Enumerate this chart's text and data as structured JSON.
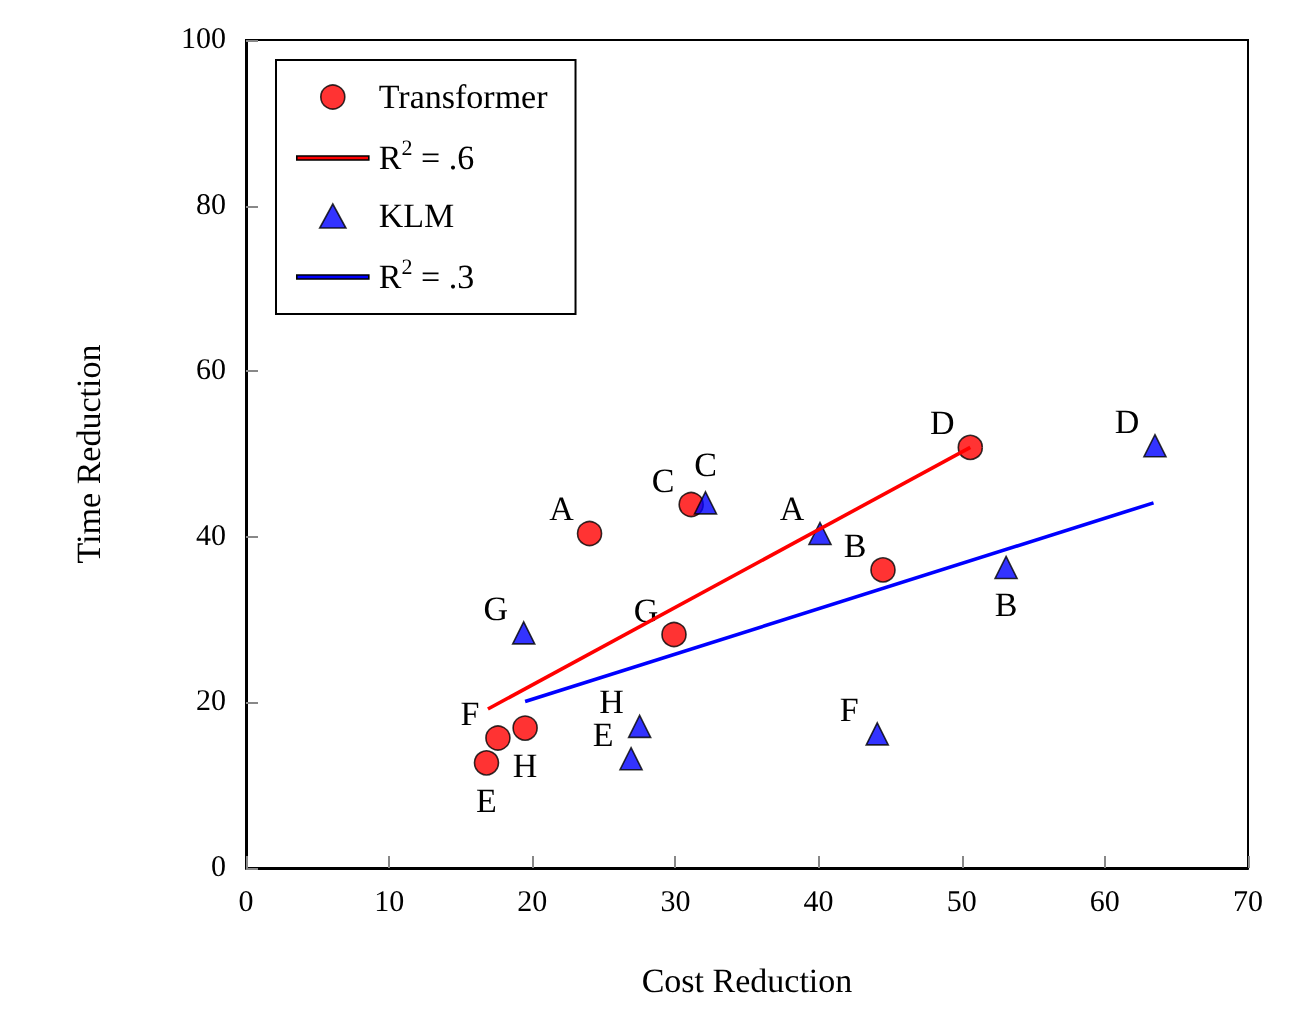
{
  "chart_data": {
    "type": "scatter",
    "xlabel": "Cost Reduction",
    "ylabel": "Time Reduction",
    "xlim": [
      0,
      70
    ],
    "xticks": [
      0,
      10,
      20,
      30,
      40,
      50,
      60,
      70
    ],
    "ylim": [
      0,
      100
    ],
    "yticks": [
      0,
      20,
      40,
      60,
      80,
      100
    ],
    "grid": false,
    "legend": "top left",
    "series": [
      {
        "name": "Transformer",
        "marker": "circle",
        "color": "#ff0000",
        "x": [
          24,
          31.1,
          50.6,
          44.5,
          29.9,
          19.5,
          17.6,
          16.8
        ],
        "values": [
          40.4,
          43.9,
          50.8,
          36.0,
          28.2,
          16.9,
          15.7,
          12.7
        ]
      },
      {
        "name": "R$^{2}$ = .6",
        "type": "line",
        "marker": "none",
        "color": "#ff0000",
        "x": [
          16.9,
          50.6
        ],
        "values": [
          19.2,
          50.8
        ]
      },
      {
        "name": "KLM",
        "marker": "triangle",
        "color": "#0000ff",
        "x": [
          40.1,
          32.1,
          63.5,
          53.1,
          19.4,
          27.5,
          26.9,
          44.1
        ],
        "values": [
          40.4,
          44.1,
          51.0,
          36.3,
          28.4,
          17.1,
          13.2,
          16.2
        ]
      },
      {
        "name": "R$^{2}$ = .3",
        "type": "line",
        "marker": "none",
        "color": "#0000ff",
        "x": [
          19.5,
          63.4
        ],
        "values": [
          20.1,
          44.1
        ]
      }
    ],
    "annotations": [
      {
        "text": "A",
        "x": 24,
        "y": 40.4
      },
      {
        "text": "C",
        "x": 31.1,
        "y": 43.9
      },
      {
        "text": "D",
        "x": 50.6,
        "y": 50.8
      },
      {
        "text": "B",
        "x": 44.5,
        "y": 36.0
      },
      {
        "text": "G",
        "x": 29.9,
        "y": 28.2
      },
      {
        "text": "H",
        "x": 19.5,
        "y": 16.9
      },
      {
        "text": "F",
        "x": 17.6,
        "y": 15.7
      },
      {
        "text": "E",
        "x": 16.8,
        "y": 12.7
      },
      {
        "text": "A",
        "x": 40.1,
        "y": 40.4
      },
      {
        "text": "C",
        "x": 32.1,
        "y": 44.1
      },
      {
        "text": "D",
        "x": 63.5,
        "y": 51.0
      },
      {
        "text": "B",
        "x": 53.1,
        "y": 36.3
      },
      {
        "text": "G",
        "x": 19.4,
        "y": 28.4
      },
      {
        "text": "H",
        "x": 27.5,
        "y": 17.1
      },
      {
        "text": "E",
        "x": 26.9,
        "y": 13.2
      },
      {
        "text": "F",
        "x": 44.1,
        "y": 16.2
      }
    ]
  }
}
